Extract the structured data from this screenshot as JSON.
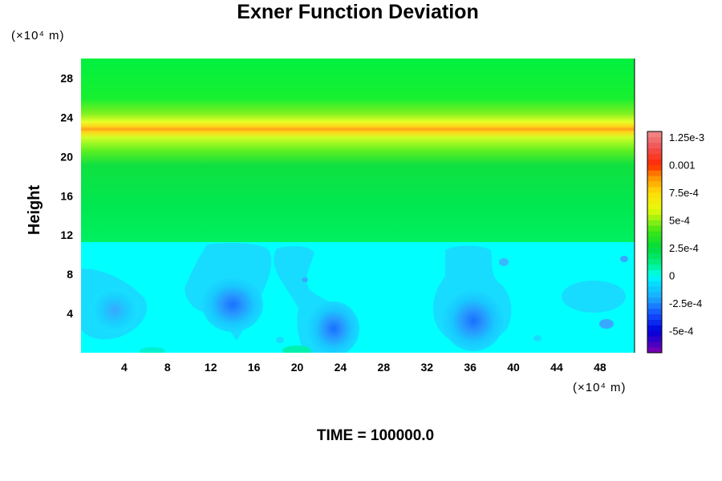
{
  "chart_data": {
    "type": "heatmap",
    "title": "Exner Function Deviation",
    "ylabel": "Height",
    "xlabel": "",
    "x_unit": "(×10⁴ m)",
    "y_unit": "(×10⁴ m)",
    "xlim": [
      0,
      51.2
    ],
    "ylim": [
      0,
      30
    ],
    "xticks": [
      "4",
      "8",
      "12",
      "16",
      "20",
      "24",
      "28",
      "32",
      "36",
      "40",
      "44",
      "48"
    ],
    "yticks": [
      "4",
      "8",
      "12",
      "16",
      "20",
      "24",
      "28"
    ],
    "colorbar": {
      "ticks": [
        "1.25e-3",
        "0.001",
        "7.5e-4",
        "5e-4",
        "2.5e-4",
        "0",
        "-2.5e-4",
        "-5e-4"
      ],
      "ticks_values": [
        0.00125,
        0.001,
        0.00075,
        0.0005,
        0.00025,
        0,
        -0.00025,
        -0.0005
      ],
      "range": [
        -0.0007,
        0.0013
      ]
    },
    "features": [
      {
        "kind": "band",
        "y_center": 19.8,
        "value_peak": 0.0008,
        "note": "maximum near height 20"
      },
      {
        "kind": "background_upper",
        "y_range": [
          11,
          30
        ],
        "value": 0.0003
      },
      {
        "kind": "background_lower",
        "y_range": [
          0,
          11
        ],
        "value": 0.0
      },
      {
        "kind": "minimum",
        "x": 3.3,
        "y": 4.5,
        "value": -0.00025
      },
      {
        "kind": "minimum",
        "x": 14,
        "y": 5,
        "value": -0.0003
      },
      {
        "kind": "minimum",
        "x": 23.5,
        "y": 2.3,
        "value": -0.00045
      },
      {
        "kind": "minimum",
        "x": 36.5,
        "y": 3,
        "value": -0.00045
      }
    ]
  },
  "footer": "TIME = 100000.0",
  "colors": {
    "cyan": "#00ffff",
    "green": "#00e838",
    "yellow": "#e8ff20",
    "orange": "#ff9a00",
    "blue": "#1060ff",
    "frame": "#000000"
  }
}
